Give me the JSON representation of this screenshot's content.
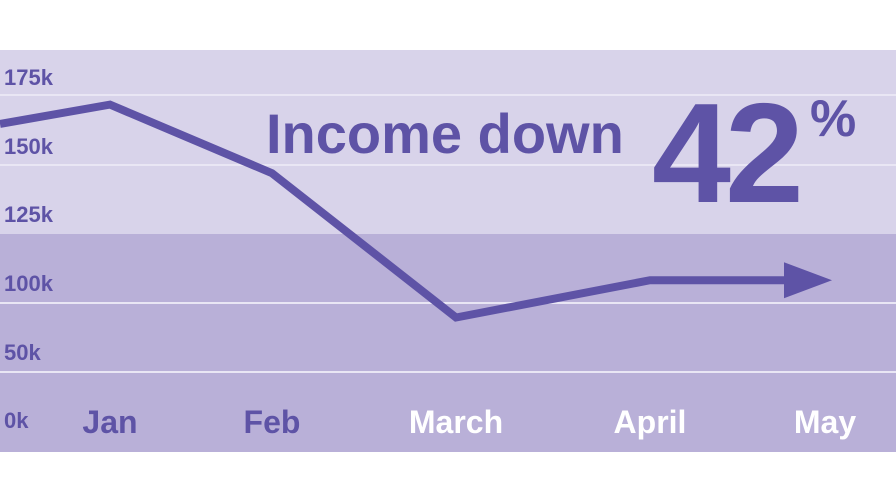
{
  "headline": {
    "text": "Income down",
    "value": "42",
    "unit": "%"
  },
  "colors": {
    "band_upper": "#d8d3ea",
    "band_lower": "#b9b0d8",
    "gridline": "#e9e6f4",
    "line": "#5e53a6",
    "ytick": "#5e53a6",
    "xtick_dark": "#5e53a6",
    "xtick_light": "#ffffff"
  },
  "chart_data": {
    "type": "line",
    "title": "",
    "xlabel": "",
    "ylabel": "",
    "y_tick_labels": [
      "0k",
      "50k",
      "100k",
      "125k",
      "150k",
      "175k"
    ],
    "categories": [
      "Jan",
      "Feb",
      "March",
      "April",
      "May"
    ],
    "x_label_colors": [
      "dark",
      "dark",
      "light",
      "light",
      "light"
    ],
    "series": [
      {
        "x": [
          "",
          "Jan",
          "Feb",
          "March",
          "April",
          "May"
        ],
        "values": [
          158000,
          165000,
          140000,
          75000,
          101000,
          101000
        ]
      }
    ],
    "ends_with_arrow": true,
    "grid": true,
    "shaded_band_split": "between 100k and 125k",
    "legend": "none"
  }
}
